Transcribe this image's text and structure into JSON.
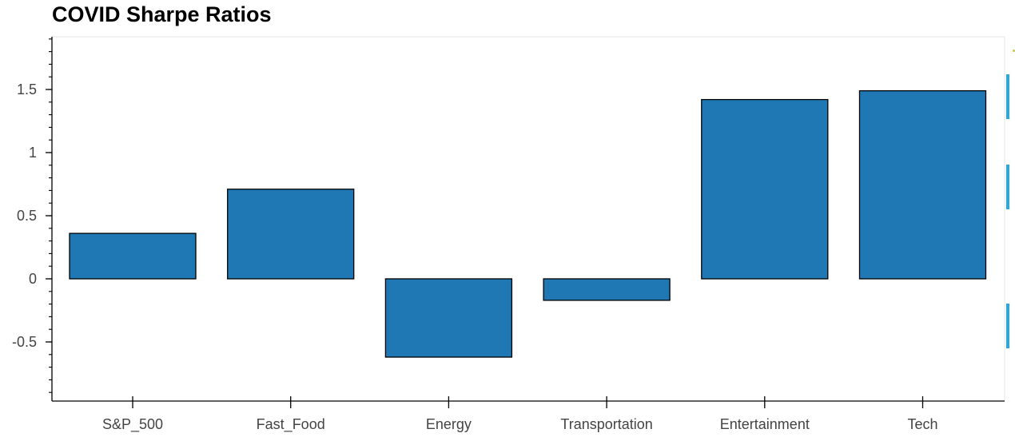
{
  "chart_data": {
    "type": "bar",
    "title": "COVID Sharpe Ratios",
    "categories": [
      "S&P_500",
      "Fast_Food",
      "Energy",
      "Transportation",
      "Entertainment",
      "Tech"
    ],
    "values": [
      0.36,
      0.71,
      -0.62,
      -0.17,
      1.42,
      1.49
    ],
    "ylim": [
      -0.95,
      1.9
    ],
    "yticks": [
      -0.5,
      0,
      0.5,
      1,
      1.5
    ],
    "ytick_labels": [
      "-0.5",
      "0",
      "0.5",
      "1",
      "1.5"
    ],
    "xlabel": "",
    "ylabel": "",
    "bar_color": "#1f77b4",
    "bar_edge_color": "#000000",
    "grid": false,
    "legend": "none"
  },
  "toolbar": {
    "accent_color": "#26aae1"
  }
}
